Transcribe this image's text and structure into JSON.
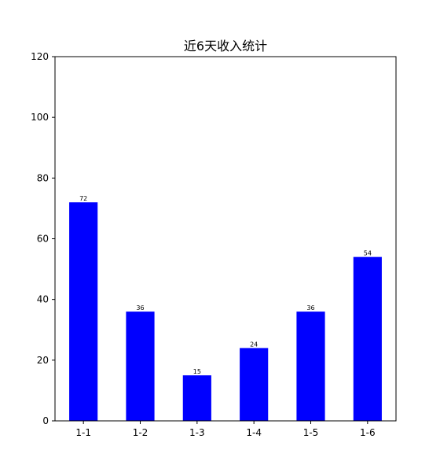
{
  "chart_data": {
    "type": "bar",
    "title": "近6天收入统计",
    "xlabel": "",
    "ylabel": "",
    "categories": [
      "1-1",
      "1-2",
      "1-3",
      "1-4",
      "1-5",
      "1-6"
    ],
    "values": [
      72,
      36,
      15,
      24,
      36,
      54
    ],
    "data_labels": [
      "72",
      "36",
      "15",
      "24",
      "36",
      "54"
    ],
    "ylim": [
      0,
      120
    ],
    "yticks": [
      0,
      20,
      40,
      60,
      80,
      100,
      120
    ],
    "ytick_labels": [
      "0",
      "20",
      "40",
      "60",
      "80",
      "100",
      "120"
    ],
    "grid": false,
    "bar_color": "#0000ff"
  }
}
